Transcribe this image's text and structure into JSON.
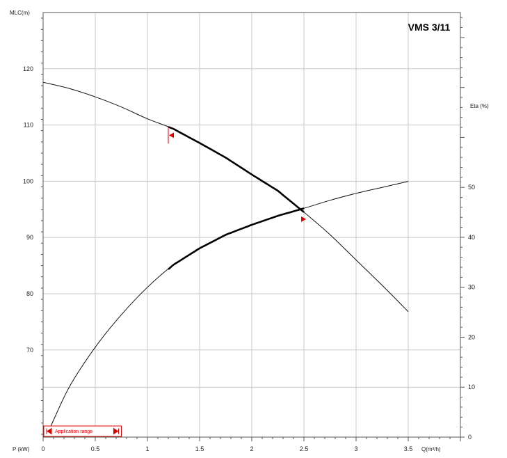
{
  "chart_data": {
    "type": "line",
    "title": "VMS 3/11",
    "y_left_label": "MLC(m)",
    "y_right_label": "Eta (%)",
    "x_label": "Q(m³/h)",
    "bottom_left_label": "P (kW)",
    "xlim": [
      0,
      4.0
    ],
    "ylim_left": [
      54.5,
      130
    ],
    "ylim_right": [
      0,
      85
    ],
    "x_ticks": [
      "0",
      "0.5",
      "1",
      "1.5",
      "2",
      "2.5",
      "3",
      "3.5"
    ],
    "y_left_ticks": [
      "70",
      "80",
      "90",
      "100",
      "110",
      "120"
    ],
    "y_right_ticks": [
      "0",
      "10",
      "20",
      "30",
      "40",
      "50"
    ],
    "grid": true,
    "series": [
      {
        "x": [
          0,
          0.25,
          0.5,
          0.75,
          1.0,
          1.25,
          1.5,
          1.75,
          2.0,
          2.25,
          2.5,
          2.75,
          3.0,
          3.25,
          3.5
        ],
        "y": [
          117.6,
          116.5,
          115.0,
          113.2,
          111.1,
          109.3,
          106.8,
          104.2,
          101.2,
          98.3,
          94.5,
          90.5,
          86.0,
          81.5,
          76.8
        ],
        "axis": "left"
      },
      {
        "x": [
          0.07,
          0.25,
          0.5,
          0.75,
          1.0,
          1.25,
          1.5,
          1.75,
          2.0,
          2.25,
          2.5,
          2.75,
          3.0,
          3.25,
          3.5
        ],
        "y": [
          2.0,
          10.0,
          18.0,
          24.5,
          30.0,
          34.5,
          37.8,
          40.5,
          42.5,
          44.3,
          45.8,
          47.4,
          48.8,
          50.0,
          51.2
        ],
        "axis": "right"
      }
    ],
    "operating_range": {
      "min": 1.2,
      "max": 2.5
    },
    "application_range": {
      "label": "Application range",
      "x_min": 0.0,
      "x_max": 0.75
    }
  }
}
